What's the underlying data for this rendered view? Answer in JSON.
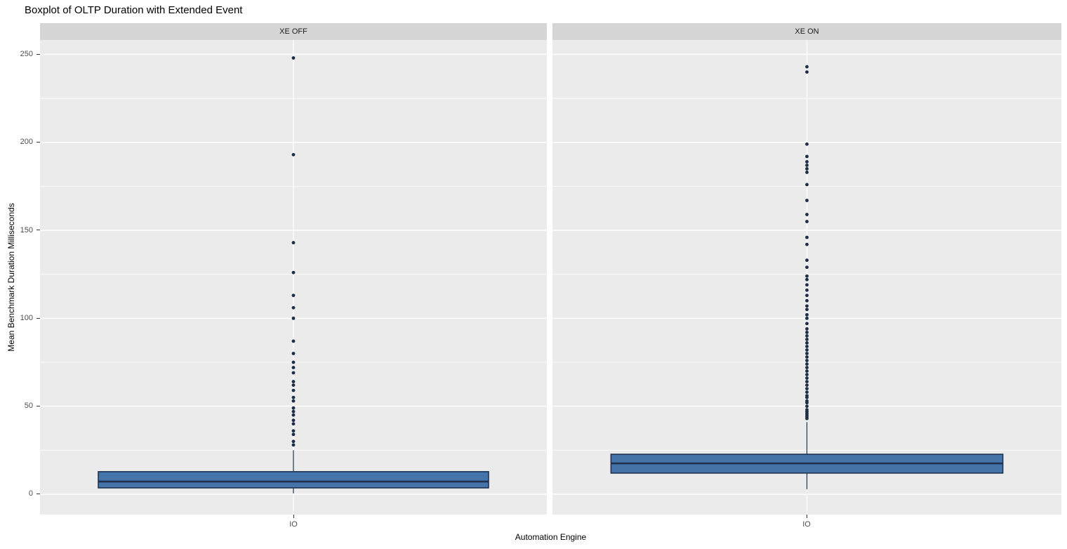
{
  "chart_data": {
    "type": "boxplot",
    "title": "Boxplot of OLTP Duration with Extended Event",
    "xlabel": "Automation Engine",
    "ylabel": "Mean Benchmark Duration Milliseconds",
    "ylim": [
      -11.6,
      258.2
    ],
    "yticks_major": [
      0,
      50,
      100,
      150,
      200,
      250
    ],
    "yticks_minor": [
      25,
      75,
      125,
      175,
      225
    ],
    "grid": "on",
    "legend": "none",
    "facets": [
      {
        "label": "XE OFF",
        "category": "IO",
        "box": {
          "whisker_min": 0.5,
          "q1": 3.6,
          "median": 7.2,
          "q3": 12.8,
          "whisker_max": 25
        },
        "outliers": [
          248,
          193,
          143,
          126,
          113,
          106,
          100,
          87,
          80,
          75,
          72,
          69,
          64,
          62,
          59,
          55,
          53,
          49,
          47,
          45,
          42,
          40,
          36,
          34,
          30,
          28
        ]
      },
      {
        "label": "XE ON",
        "category": "IO",
        "box": {
          "whisker_min": 2.8,
          "q1": 12.0,
          "median": 17.5,
          "q3": 22.7,
          "whisker_max": 41
        },
        "outliers": [
          243,
          240,
          199,
          192,
          189,
          187,
          185,
          183,
          176,
          167,
          159,
          155,
          146,
          142,
          133,
          129,
          124,
          122,
          119,
          116,
          113,
          110,
          107,
          105,
          102,
          100,
          97,
          94,
          92,
          90,
          88,
          86,
          84,
          82,
          80,
          78,
          76,
          74,
          72,
          70,
          68,
          66,
          64,
          62,
          60,
          58,
          56,
          55,
          53,
          52,
          50,
          48,
          47,
          46,
          45,
          44,
          43
        ]
      }
    ],
    "colors": {
      "box_fill": "#4574ab",
      "box_stroke": "#1e3250",
      "outlier_point": "#1e2c44",
      "panel_background": "#ebebeb",
      "strip_background": "#d6d6d6",
      "gridline": "#ffffff",
      "tick_text": "#4d4d4d",
      "title_text": "#000000"
    }
  }
}
